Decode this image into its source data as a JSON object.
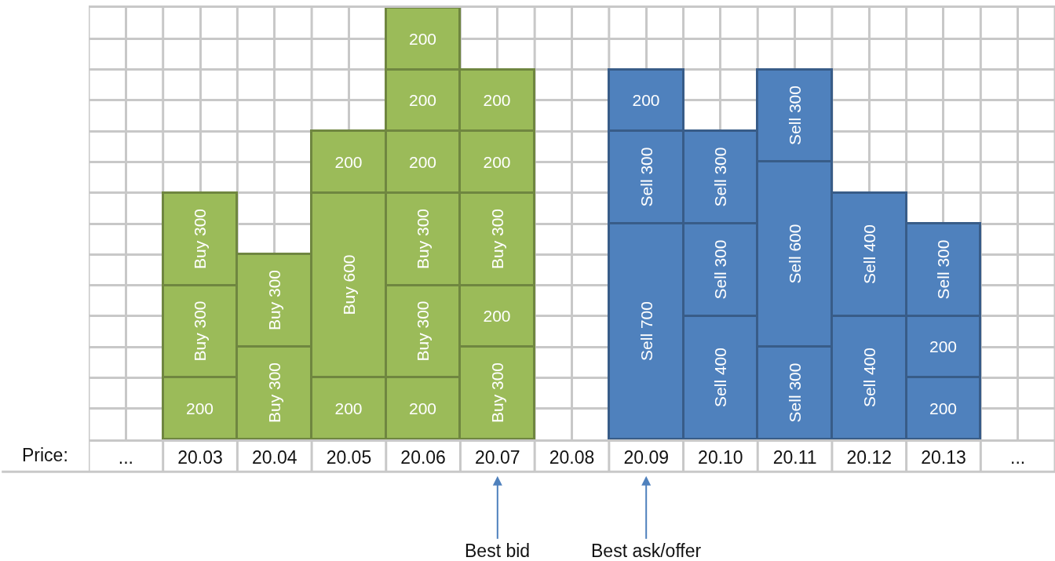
{
  "chart_data": {
    "type": "bar",
    "stacked": true,
    "xlabel": "Price:",
    "categories": [
      "...",
      "20.03",
      "20.04",
      "20.05",
      "20.06",
      "20.07",
      "20.08",
      "20.09",
      "20.10",
      "20.11",
      "20.12",
      "20.13",
      "..."
    ],
    "series": [
      {
        "colors": [
          null,
          "#9bbb59",
          "#9bbb59",
          "#9bbb59",
          "#9bbb59",
          "#9bbb59",
          null,
          "#4f81bd",
          "#4f81bd",
          "#4f81bd",
          "#4f81bd",
          "#4f81bd",
          null
        ],
        "values": [
          null,
          200,
          300,
          200,
          200,
          300,
          null,
          700,
          400,
          300,
          400,
          200,
          null
        ],
        "value_labels": [
          null,
          "200",
          "Buy 300",
          "200",
          "200",
          "Buy 300",
          null,
          "Sell 700",
          "Sell 400",
          "Sell 300",
          "Sell 400",
          "200",
          null
        ]
      },
      {
        "colors": [
          null,
          "#9bbb59",
          "#9bbb59",
          "#9bbb59",
          "#9bbb59",
          "#9bbb59",
          null,
          "#4f81bd",
          "#4f81bd",
          "#4f81bd",
          "#4f81bd",
          "#4f81bd",
          null
        ],
        "values": [
          null,
          300,
          300,
          600,
          300,
          200,
          null,
          300,
          300,
          600,
          400,
          200,
          null
        ],
        "value_labels": [
          null,
          "Buy 300",
          "Buy 300",
          "Buy 600",
          "Buy 300",
          "200",
          null,
          "Sell 300",
          "Sell 300",
          "Sell 600",
          "Sell 400",
          "200",
          null
        ]
      },
      {
        "colors": [
          null,
          "#9bbb59",
          null,
          "#9bbb59",
          "#9bbb59",
          "#9bbb59",
          null,
          "#4f81bd",
          "#4f81bd",
          "#4f81bd",
          null,
          "#4f81bd",
          null
        ],
        "values": [
          null,
          300,
          null,
          200,
          300,
          300,
          null,
          200,
          300,
          300,
          null,
          300,
          null
        ],
        "value_labels": [
          null,
          "Buy 300",
          null,
          "200",
          "Buy 300",
          "Buy 300",
          null,
          "200",
          "Sell 300",
          "Sell 300",
          null,
          "Sell 300",
          null
        ]
      },
      {
        "colors": [
          null,
          null,
          null,
          null,
          "#9bbb59",
          "#9bbb59",
          null,
          null,
          null,
          null,
          null,
          null,
          null
        ],
        "values": [
          null,
          null,
          null,
          null,
          200,
          200,
          null,
          null,
          null,
          null,
          null,
          null,
          null
        ],
        "value_labels": [
          null,
          null,
          null,
          null,
          "200",
          "200",
          null,
          null,
          null,
          null,
          null,
          null,
          null
        ]
      },
      {
        "colors": [
          null,
          null,
          null,
          null,
          "#9bbb59",
          "#9bbb59",
          null,
          null,
          null,
          null,
          null,
          null,
          null
        ],
        "values": [
          null,
          null,
          null,
          null,
          200,
          200,
          null,
          null,
          null,
          null,
          null,
          null,
          null
        ],
        "value_labels": [
          null,
          null,
          null,
          null,
          "200",
          "200",
          null,
          null,
          null,
          null,
          null,
          null,
          null
        ]
      },
      {
        "colors": [
          null,
          null,
          null,
          null,
          "#9bbb59",
          null,
          null,
          null,
          null,
          null,
          null,
          null,
          null
        ],
        "values": [
          null,
          null,
          null,
          null,
          200,
          null,
          null,
          null,
          null,
          null,
          null,
          null,
          null
        ],
        "value_labels": [
          null,
          null,
          null,
          null,
          "200",
          null,
          null,
          null,
          null,
          null,
          null,
          null,
          null
        ]
      }
    ],
    "ylim": [
      0,
      1400
    ],
    "yticks": [
      {
        "value": 100,
        "label": null
      },
      {
        "value": 200,
        "label": null
      },
      {
        "value": 300,
        "label": null
      },
      {
        "value": 400,
        "label": null
      },
      {
        "value": 500,
        "label": null
      },
      {
        "value": 600,
        "label": null
      },
      {
        "value": 700,
        "label": null
      },
      {
        "value": 800,
        "label": null
      },
      {
        "value": 900,
        "label": null
      },
      {
        "value": 1000,
        "label": null
      },
      {
        "value": 1100,
        "label": null
      },
      {
        "value": 1200,
        "label": null
      },
      {
        "value": 1300,
        "label": null
      }
    ],
    "tick_labels": "x",
    "grid": true,
    "annotations": [
      {
        "text": "Best bid",
        "x": "20.07"
      },
      {
        "text": "Best ask/offer",
        "x": "20.09"
      }
    ]
  }
}
